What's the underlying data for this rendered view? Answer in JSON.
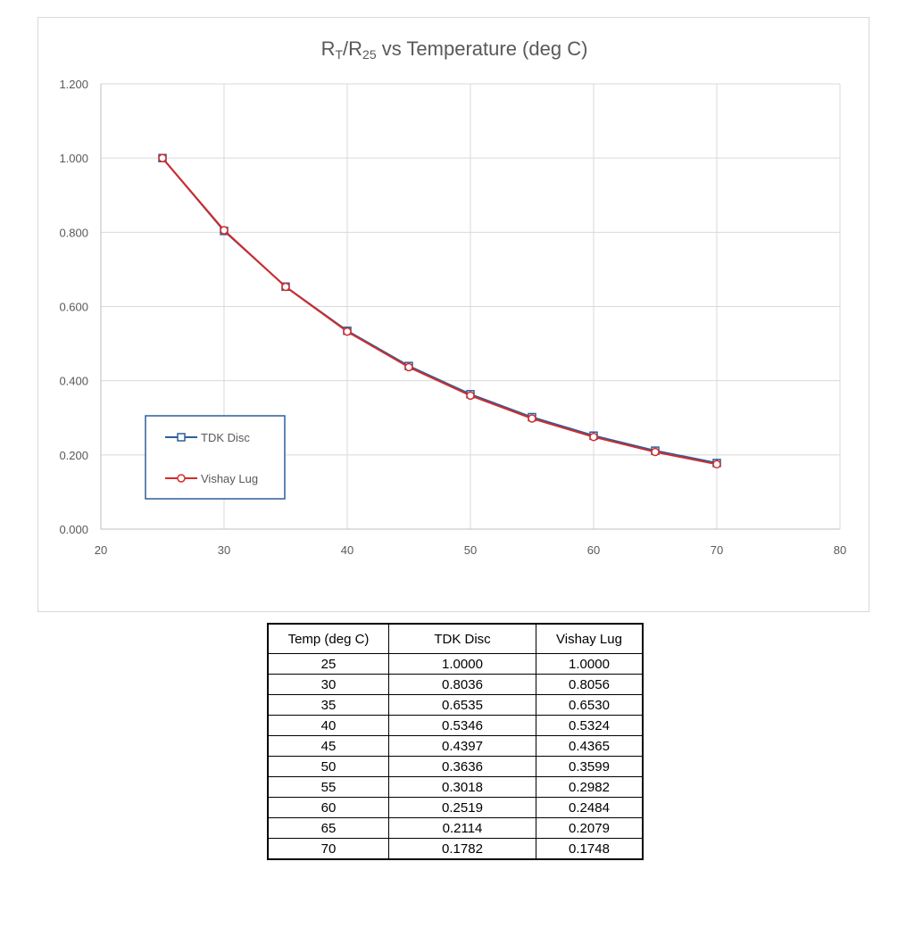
{
  "chart_data": {
    "type": "line",
    "title_main": "R",
    "title_sub1": "T",
    "title_mid": "/R",
    "title_sub2": "25",
    "title_rest": " vs Temperature (deg C)",
    "xlim": [
      20,
      80
    ],
    "ylim": [
      0,
      1.2
    ],
    "x_ticks": [
      "20",
      "30",
      "40",
      "50",
      "60",
      "70",
      "80"
    ],
    "y_ticks": [
      "0.000",
      "0.200",
      "0.400",
      "0.600",
      "0.800",
      "1.000",
      "1.200"
    ],
    "grid": true,
    "legend_position": "lower-left",
    "x": [
      25,
      30,
      35,
      40,
      45,
      50,
      55,
      60,
      65,
      70
    ],
    "series": [
      {
        "name": "TDK Disc",
        "color": "#2e5f97",
        "marker": "square",
        "values": [
          1.0,
          0.8036,
          0.6535,
          0.5346,
          0.4397,
          0.3636,
          0.3018,
          0.2519,
          0.2114,
          0.1782
        ]
      },
      {
        "name": "Vishay Lug",
        "color": "#d42a2a",
        "marker": "circle",
        "values": [
          1.0,
          0.8056,
          0.653,
          0.5324,
          0.4365,
          0.3599,
          0.2982,
          0.2484,
          0.2079,
          0.1748
        ]
      }
    ]
  },
  "table": {
    "headers": [
      "Temp (deg C)",
      "TDK Disc",
      "Vishay Lug"
    ],
    "rows": [
      [
        "25",
        "1.0000",
        "1.0000"
      ],
      [
        "30",
        "0.8036",
        "0.8056"
      ],
      [
        "35",
        "0.6535",
        "0.6530"
      ],
      [
        "40",
        "0.5346",
        "0.5324"
      ],
      [
        "45",
        "0.4397",
        "0.4365"
      ],
      [
        "50",
        "0.3636",
        "0.3599"
      ],
      [
        "55",
        "0.3018",
        "0.2982"
      ],
      [
        "60",
        "0.2519",
        "0.2484"
      ],
      [
        "65",
        "0.2114",
        "0.2079"
      ],
      [
        "70",
        "0.1782",
        "0.1748"
      ]
    ]
  }
}
